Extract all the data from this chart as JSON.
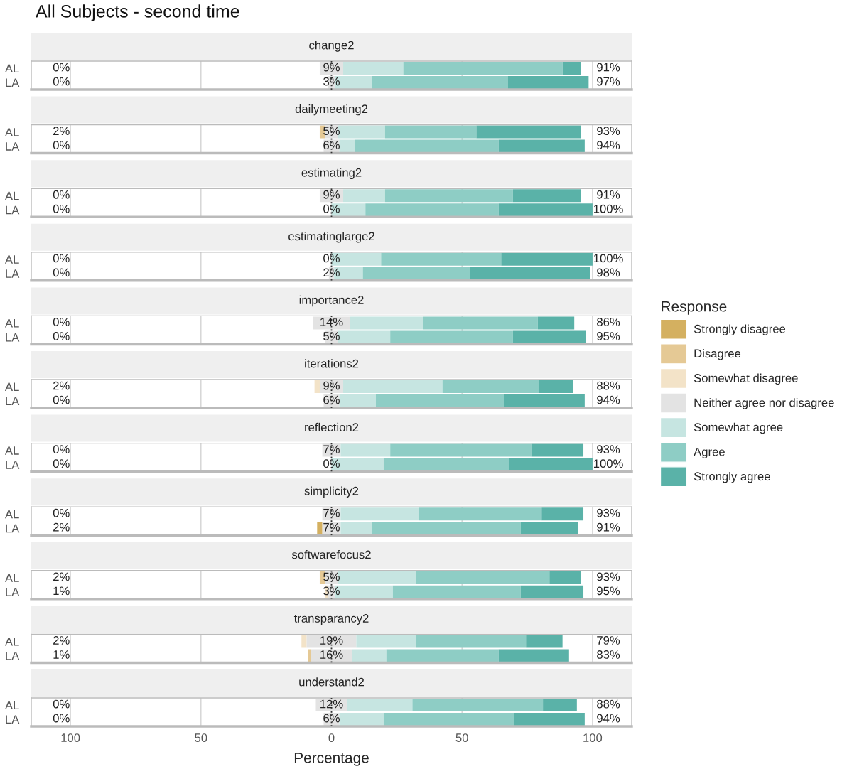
{
  "chart_data": [
    {
      "type": "bar",
      "orientation": "horizontal",
      "title": "All Subjects - second time",
      "subtitle": "change2",
      "categories": [
        "AL",
        "LA"
      ],
      "series": [
        {
          "color": "#e3e3e3",
          "values": [
            9,
            3
          ],
          "base": [
            -4.5,
            -1.5
          ],
          "value_labels": [
            "9%",
            "3%"
          ]
        },
        {
          "color": "#c6e5e1",
          "values": [
            23,
            14
          ],
          "base": [
            4.5,
            1.5
          ]
        },
        {
          "color": "#8ecdc5",
          "values": [
            61,
            52
          ],
          "base": [
            27.5,
            15.5
          ]
        },
        {
          "color": "#5ab2a8",
          "values": [
            7,
            31
          ],
          "base": [
            88.5,
            67.5
          ]
        }
      ],
      "annotations": [
        "0%",
        "91%",
        "0%",
        "97%"
      ],
      "xlim": [
        -115,
        115
      ],
      "xticks": [
        {
          "value": -100,
          "label": null
        },
        {
          "value": -50,
          "label": null
        },
        {
          "value": 0,
          "label": null
        },
        {
          "value": 50,
          "label": null
        },
        {
          "value": 100,
          "label": null
        }
      ],
      "tick_labels": "y",
      "grid": "x",
      "ref_lines": [
        {
          "axis": "x",
          "value": 0,
          "color": "#333333",
          "line_style": "dotted"
        }
      ]
    },
    {
      "type": "bar",
      "orientation": "horizontal",
      "subtitle": "dailymeeting2",
      "categories": [
        "AL",
        "LA"
      ],
      "series": [
        {
          "color": "#e5c995",
          "values": [
            2,
            null
          ],
          "base": [
            -4.5,
            null
          ]
        },
        {
          "color": "#e3e3e3",
          "values": [
            5,
            6
          ],
          "base": [
            -2.5,
            -3
          ],
          "value_labels": [
            "5%",
            "6%"
          ]
        },
        {
          "color": "#c6e5e1",
          "values": [
            18,
            6
          ],
          "base": [
            2.5,
            3
          ]
        },
        {
          "color": "#8ecdc5",
          "values": [
            35,
            55
          ],
          "base": [
            20.5,
            9
          ]
        },
        {
          "color": "#5ab2a8",
          "values": [
            40,
            33
          ],
          "base": [
            55.5,
            64
          ]
        }
      ],
      "annotations": [
        "2%",
        "93%",
        "0%",
        "94%"
      ],
      "xlim": [
        -115,
        115
      ],
      "xticks": [
        {
          "value": -100,
          "label": null
        },
        {
          "value": -50,
          "label": null
        },
        {
          "value": 0,
          "label": null
        },
        {
          "value": 50,
          "label": null
        },
        {
          "value": 100,
          "label": null
        }
      ],
      "tick_labels": "y",
      "grid": "x",
      "ref_lines": [
        {
          "axis": "x",
          "value": 0,
          "color": "#333333",
          "line_style": "dotted"
        }
      ]
    },
    {
      "type": "bar",
      "orientation": "horizontal",
      "subtitle": "estimating2",
      "categories": [
        "AL",
        "LA"
      ],
      "series": [
        {
          "color": "#e3e3e3",
          "values": [
            9,
            0
          ],
          "base": [
            -4.5,
            null
          ],
          "value_labels": [
            "9%",
            "0%"
          ]
        },
        {
          "color": "#c6e5e1",
          "values": [
            16,
            13
          ],
          "base": [
            4.5,
            0
          ]
        },
        {
          "color": "#8ecdc5",
          "values": [
            49,
            51
          ],
          "base": [
            20.5,
            13
          ]
        },
        {
          "color": "#5ab2a8",
          "values": [
            26,
            36
          ],
          "base": [
            69.5,
            64
          ]
        }
      ],
      "annotations": [
        "0%",
        "91%",
        "0%",
        "100%"
      ],
      "xlim": [
        -115,
        115
      ],
      "xticks": [
        {
          "value": -100,
          "label": null
        },
        {
          "value": -50,
          "label": null
        },
        {
          "value": 0,
          "label": null
        },
        {
          "value": 50,
          "label": null
        },
        {
          "value": 100,
          "label": null
        }
      ],
      "tick_labels": "y",
      "grid": "x",
      "ref_lines": [
        {
          "axis": "x",
          "value": 0,
          "color": "#333333",
          "line_style": "dotted"
        }
      ]
    },
    {
      "type": "bar",
      "orientation": "horizontal",
      "subtitle": "estimatinglarge2",
      "categories": [
        "AL",
        "LA"
      ],
      "series": [
        {
          "color": "#e3e3e3",
          "values": [
            0,
            2
          ],
          "base": [
            null,
            -1
          ],
          "value_labels": [
            "0%",
            "2%"
          ]
        },
        {
          "color": "#c6e5e1",
          "values": [
            19,
            11
          ],
          "base": [
            0,
            1
          ]
        },
        {
          "color": "#8ecdc5",
          "values": [
            46,
            41
          ],
          "base": [
            19,
            12
          ]
        },
        {
          "color": "#5ab2a8",
          "values": [
            35,
            46
          ],
          "base": [
            65,
            53
          ]
        }
      ],
      "annotations": [
        "0%",
        "100%",
        "0%",
        "98%"
      ],
      "xlim": [
        -115,
        115
      ],
      "xticks": [
        {
          "value": -100,
          "label": null
        },
        {
          "value": -50,
          "label": null
        },
        {
          "value": 0,
          "label": null
        },
        {
          "value": 50,
          "label": null
        },
        {
          "value": 100,
          "label": null
        }
      ],
      "tick_labels": "y",
      "grid": "x",
      "ref_lines": [
        {
          "axis": "x",
          "value": 0,
          "color": "#333333",
          "line_style": "dotted"
        }
      ]
    },
    {
      "type": "bar",
      "orientation": "horizontal",
      "subtitle": "importance2",
      "categories": [
        "AL",
        "LA"
      ],
      "series": [
        {
          "color": "#e3e3e3",
          "values": [
            14,
            5
          ],
          "base": [
            -7,
            -2.5
          ],
          "value_labels": [
            "14%",
            "5%"
          ]
        },
        {
          "color": "#c6e5e1",
          "values": [
            28,
            20
          ],
          "base": [
            7,
            2.5
          ]
        },
        {
          "color": "#8ecdc5",
          "values": [
            44,
            47
          ],
          "base": [
            35,
            22.5
          ]
        },
        {
          "color": "#5ab2a8",
          "values": [
            14,
            28
          ],
          "base": [
            79,
            69.5
          ]
        }
      ],
      "annotations": [
        "0%",
        "86%",
        "0%",
        "95%"
      ],
      "xlim": [
        -115,
        115
      ],
      "xticks": [
        {
          "value": -100,
          "label": null
        },
        {
          "value": -50,
          "label": null
        },
        {
          "value": 0,
          "label": null
        },
        {
          "value": 50,
          "label": null
        },
        {
          "value": 100,
          "label": null
        }
      ],
      "tick_labels": "y",
      "grid": "x",
      "ref_lines": [
        {
          "axis": "x",
          "value": 0,
          "color": "#333333",
          "line_style": "dotted"
        }
      ]
    },
    {
      "type": "bar",
      "orientation": "horizontal",
      "subtitle": "iterations2",
      "categories": [
        "AL",
        "LA"
      ],
      "legend": "right",
      "legend_title": "Response",
      "series": [
        {
          "name": "Strongly disagree",
          "color": "#d4b060",
          "values": [
            null,
            null
          ],
          "base": [
            null,
            null
          ]
        },
        {
          "name": "Disagree",
          "color": "#e5c995",
          "values": [
            null,
            null
          ],
          "base": [
            null,
            null
          ]
        },
        {
          "name": "Somewhat disagree",
          "color": "#f3e3c8",
          "values": [
            2,
            null
          ],
          "base": [
            -6.5,
            null
          ]
        },
        {
          "name": "Neither agree nor disagree",
          "color": "#e3e3e3",
          "values": [
            9,
            6
          ],
          "base": [
            -4.5,
            -3
          ],
          "value_labels": [
            "9%",
            "6%"
          ]
        },
        {
          "name": "Somewhat agree",
          "color": "#c6e5e1",
          "values": [
            38,
            14
          ],
          "base": [
            4.5,
            3
          ]
        },
        {
          "name": "Agree",
          "color": "#8ecdc5",
          "values": [
            37,
            49
          ],
          "base": [
            42.5,
            17
          ]
        },
        {
          "name": "Strongly agree",
          "color": "#5ab2a8",
          "values": [
            13,
            31
          ],
          "base": [
            79.5,
            66
          ]
        }
      ],
      "annotations": [
        "2%",
        "88%",
        "0%",
        "94%"
      ],
      "xlim": [
        -115,
        115
      ],
      "xticks": [
        {
          "value": -100,
          "label": null
        },
        {
          "value": -50,
          "label": null
        },
        {
          "value": 0,
          "label": null
        },
        {
          "value": 50,
          "label": null
        },
        {
          "value": 100,
          "label": null
        }
      ],
      "tick_labels": "y",
      "grid": "x",
      "ref_lines": [
        {
          "axis": "x",
          "value": 0,
          "color": "#333333",
          "line_style": "dotted"
        }
      ]
    },
    {
      "type": "bar",
      "orientation": "horizontal",
      "subtitle": "reflection2",
      "categories": [
        "AL",
        "LA"
      ],
      "series": [
        {
          "color": "#e3e3e3",
          "values": [
            7,
            0
          ],
          "base": [
            -3.5,
            null
          ],
          "value_labels": [
            "7%",
            "0%"
          ]
        },
        {
          "color": "#c6e5e1",
          "values": [
            19,
            20
          ],
          "base": [
            3.5,
            0
          ]
        },
        {
          "color": "#8ecdc5",
          "values": [
            54,
            48
          ],
          "base": [
            22.5,
            20
          ]
        },
        {
          "color": "#5ab2a8",
          "values": [
            20,
            32
          ],
          "base": [
            76.5,
            68
          ]
        }
      ],
      "annotations": [
        "0%",
        "93%",
        "0%",
        "100%"
      ],
      "xlim": [
        -115,
        115
      ],
      "xticks": [
        {
          "value": -100,
          "label": null
        },
        {
          "value": -50,
          "label": null
        },
        {
          "value": 0,
          "label": null
        },
        {
          "value": 50,
          "label": null
        },
        {
          "value": 100,
          "label": null
        }
      ],
      "tick_labels": "y",
      "grid": "x",
      "ref_lines": [
        {
          "axis": "x",
          "value": 0,
          "color": "#333333",
          "line_style": "dotted"
        }
      ]
    },
    {
      "type": "bar",
      "orientation": "horizontal",
      "subtitle": "simplicity2",
      "categories": [
        "AL",
        "LA"
      ],
      "series": [
        {
          "color": "#d4b060",
          "values": [
            null,
            2
          ],
          "base": [
            null,
            -5.5
          ]
        },
        {
          "color": "#e3e3e3",
          "values": [
            7,
            7
          ],
          "base": [
            -3.5,
            -3.5
          ],
          "value_labels": [
            "7%",
            "7%"
          ]
        },
        {
          "color": "#c6e5e1",
          "values": [
            30,
            12
          ],
          "base": [
            3.5,
            3.5
          ]
        },
        {
          "color": "#8ecdc5",
          "values": [
            47,
            57
          ],
          "base": [
            33.5,
            15.5
          ]
        },
        {
          "color": "#5ab2a8",
          "values": [
            16,
            22
          ],
          "base": [
            80.5,
            72.5
          ]
        }
      ],
      "annotations": [
        "0%",
        "93%",
        "2%",
        "91%"
      ],
      "xlim": [
        -115,
        115
      ],
      "xticks": [
        {
          "value": -100,
          "label": null
        },
        {
          "value": -50,
          "label": null
        },
        {
          "value": 0,
          "label": null
        },
        {
          "value": 50,
          "label": null
        },
        {
          "value": 100,
          "label": null
        }
      ],
      "tick_labels": "y",
      "grid": "x",
      "ref_lines": [
        {
          "axis": "x",
          "value": 0,
          "color": "#333333",
          "line_style": "dotted"
        }
      ]
    },
    {
      "type": "bar",
      "orientation": "horizontal",
      "subtitle": "softwarefocus2",
      "categories": [
        "AL",
        "LA"
      ],
      "series": [
        {
          "color": "#e5c995",
          "values": [
            2,
            null
          ],
          "base": [
            -4.5,
            null
          ]
        },
        {
          "color": "#f3e3c8",
          "values": [
            null,
            1
          ],
          "base": [
            null,
            -2.5
          ]
        },
        {
          "color": "#e3e3e3",
          "values": [
            5,
            3
          ],
          "base": [
            -2.5,
            -1.5
          ],
          "value_labels": [
            "5%",
            "3%"
          ]
        },
        {
          "color": "#c6e5e1",
          "values": [
            30,
            22
          ],
          "base": [
            2.5,
            1.5
          ]
        },
        {
          "color": "#8ecdc5",
          "values": [
            51,
            49
          ],
          "base": [
            32.5,
            23.5
          ]
        },
        {
          "color": "#5ab2a8",
          "values": [
            12,
            24
          ],
          "base": [
            83.5,
            72.5
          ]
        }
      ],
      "annotations": [
        "2%",
        "93%",
        "1%",
        "95%"
      ],
      "xlim": [
        -115,
        115
      ],
      "xticks": [
        {
          "value": -100,
          "label": null
        },
        {
          "value": -50,
          "label": null
        },
        {
          "value": 0,
          "label": null
        },
        {
          "value": 50,
          "label": null
        },
        {
          "value": 100,
          "label": null
        }
      ],
      "tick_labels": "y",
      "grid": "x",
      "ref_lines": [
        {
          "axis": "x",
          "value": 0,
          "color": "#333333",
          "line_style": "dotted"
        }
      ]
    },
    {
      "type": "bar",
      "orientation": "horizontal",
      "subtitle": "transparancy2",
      "categories": [
        "AL",
        "LA"
      ],
      "series": [
        {
          "color": "#e5c995",
          "values": [
            null,
            1
          ],
          "base": [
            null,
            -9
          ]
        },
        {
          "color": "#f3e3c8",
          "values": [
            2,
            null
          ],
          "base": [
            -11.5,
            null
          ]
        },
        {
          "color": "#e3e3e3",
          "values": [
            19,
            16
          ],
          "base": [
            -9.5,
            -8
          ],
          "value_labels": [
            "19%",
            "16%"
          ]
        },
        {
          "color": "#c6e5e1",
          "values": [
            23,
            13
          ],
          "base": [
            9.5,
            8
          ]
        },
        {
          "color": "#8ecdc5",
          "values": [
            42,
            43
          ],
          "base": [
            32.5,
            21
          ]
        },
        {
          "color": "#5ab2a8",
          "values": [
            14,
            27
          ],
          "base": [
            74.5,
            64
          ]
        }
      ],
      "annotations": [
        "2%",
        "79%",
        "1%",
        "83%"
      ],
      "xlim": [
        -115,
        115
      ],
      "xticks": [
        {
          "value": -100,
          "label": null
        },
        {
          "value": -50,
          "label": null
        },
        {
          "value": 0,
          "label": null
        },
        {
          "value": 50,
          "label": null
        },
        {
          "value": 100,
          "label": null
        }
      ],
      "tick_labels": "y",
      "grid": "x",
      "ref_lines": [
        {
          "axis": "x",
          "value": 0,
          "color": "#333333",
          "line_style": "dotted"
        }
      ]
    },
    {
      "type": "bar",
      "orientation": "horizontal",
      "subtitle": "understand2",
      "categories": [
        "AL",
        "LA"
      ],
      "xlabel": "Percentage",
      "series": [
        {
          "color": "#e3e3e3",
          "values": [
            12,
            6
          ],
          "base": [
            -6,
            -3
          ],
          "value_labels": [
            "12%",
            "6%"
          ]
        },
        {
          "color": "#c6e5e1",
          "values": [
            25,
            17
          ],
          "base": [
            6,
            3
          ]
        },
        {
          "color": "#8ecdc5",
          "values": [
            50,
            50
          ],
          "base": [
            31,
            20
          ]
        },
        {
          "color": "#5ab2a8",
          "values": [
            13,
            27
          ],
          "base": [
            81,
            70
          ]
        }
      ],
      "annotations": [
        "0%",
        "88%",
        "0%",
        "94%"
      ],
      "xlim": [
        -115,
        115
      ],
      "xticks": [
        {
          "value": -100,
          "label": "100"
        },
        {
          "value": -50,
          "label": "50"
        },
        0,
        50,
        100
      ],
      "grid": "x",
      "ref_lines": [
        {
          "axis": "x",
          "value": 0,
          "color": "#333333",
          "line_style": "dotted"
        }
      ]
    }
  ]
}
